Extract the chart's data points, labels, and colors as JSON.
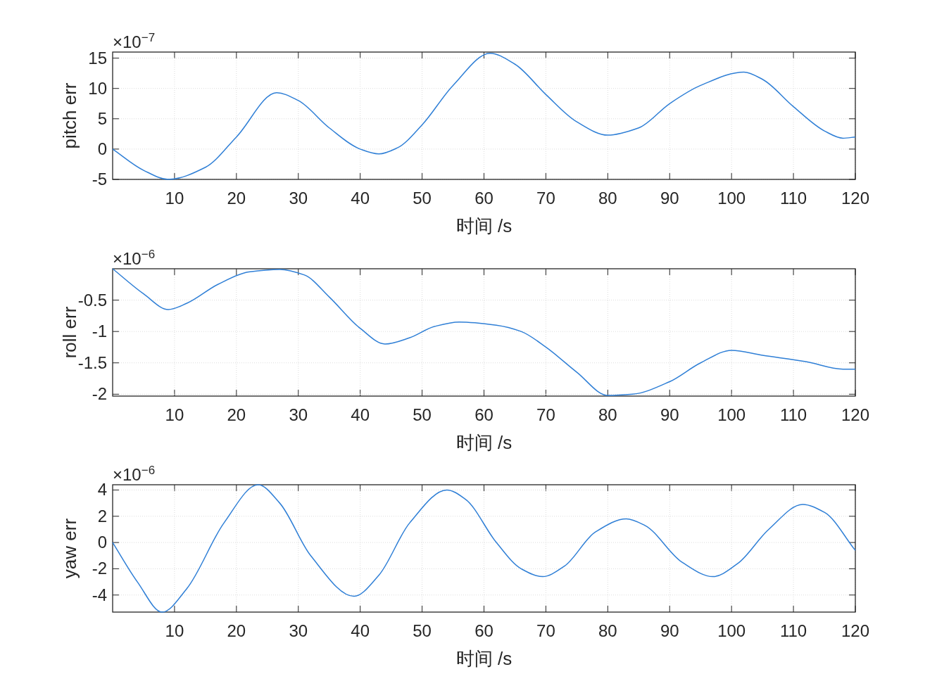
{
  "chart_data": [
    {
      "type": "line",
      "ylabel": "pitch err",
      "xlabel": "时间 /s",
      "annotations": [
        "×10$^{−7}$"
      ],
      "xlim": [
        0,
        120
      ],
      "xticks": [
        10,
        20,
        30,
        40,
        50,
        60,
        70,
        80,
        90,
        100,
        110,
        120
      ],
      "ylim": [
        -5,
        16
      ],
      "yticks": [
        -5,
        0,
        5,
        10,
        15
      ],
      "grid": true,
      "x": [
        0,
        5,
        9,
        15,
        20,
        26.5,
        30,
        35,
        40,
        43,
        46,
        50,
        55,
        61,
        65,
        70,
        75,
        80,
        85,
        90,
        95,
        102,
        105,
        110,
        115,
        118,
        120
      ],
      "series": [
        {
          "color": "#2f7fd6",
          "values": [
            0,
            -3.5,
            -5,
            -3,
            2,
            9.3,
            8,
            3.5,
            0,
            -0.8,
            0.2,
            4,
            10.5,
            15.8,
            14,
            9,
            4.5,
            2.3,
            3.5,
            7.5,
            10.5,
            12.7,
            11.5,
            7,
            3,
            1.8,
            2
          ]
        }
      ]
    },
    {
      "type": "line",
      "ylabel": "roll err",
      "xlabel": "时间 /s",
      "annotations": [
        "×10$^{−6}$"
      ],
      "xlim": [
        0,
        120
      ],
      "xticks": [
        10,
        20,
        30,
        40,
        50,
        60,
        70,
        80,
        90,
        100,
        110,
        120
      ],
      "ylim": [
        -2.03,
        0
      ],
      "yticks": [
        -2,
        -1.5,
        -1,
        -0.5
      ],
      "grid": true,
      "x": [
        0,
        5,
        9,
        12,
        17,
        22,
        27,
        31,
        35,
        40,
        44,
        48,
        52,
        56,
        62,
        66,
        70,
        75,
        80,
        84,
        90,
        95,
        100,
        105,
        112,
        118,
        120
      ],
      "series": [
        {
          "color": "#2f7fd6",
          "values": [
            0,
            -0.4,
            -0.65,
            -0.55,
            -0.25,
            -0.05,
            -0.01,
            -0.1,
            -0.45,
            -0.95,
            -1.2,
            -1.1,
            -0.92,
            -0.85,
            -0.9,
            -1.0,
            -1.25,
            -1.65,
            -2.02,
            -2.0,
            -1.8,
            -1.5,
            -1.3,
            -1.38,
            -1.48,
            -1.6,
            -1.6
          ]
        }
      ]
    },
    {
      "type": "line",
      "ylabel": "yaw err",
      "xlabel": "时间 /s",
      "annotations": [
        "×10$^{−6}$"
      ],
      "xlim": [
        0,
        120
      ],
      "xticks": [
        10,
        20,
        30,
        40,
        50,
        60,
        70,
        80,
        90,
        100,
        110,
        120
      ],
      "ylim": [
        -5.3,
        4.4
      ],
      "yticks": [
        -4,
        -2,
        0,
        2,
        4
      ],
      "grid": true,
      "x": [
        0,
        4,
        8,
        12,
        18,
        23.5,
        27,
        32,
        39,
        43,
        48,
        54,
        57,
        62,
        66,
        69.5,
        73,
        78,
        83,
        86,
        92,
        97,
        101,
        106,
        111.5,
        115,
        120
      ],
      "series": [
        {
          "color": "#2f7fd6",
          "values": [
            0,
            -3,
            -5.3,
            -3.5,
            1.5,
            4.4,
            3,
            -1,
            -4.1,
            -2.5,
            1.5,
            4,
            3.3,
            0,
            -2,
            -2.6,
            -1.8,
            0.8,
            1.8,
            1.3,
            -1.5,
            -2.6,
            -1.6,
            1,
            2.9,
            2.3,
            -0.6
          ]
        }
      ]
    }
  ]
}
